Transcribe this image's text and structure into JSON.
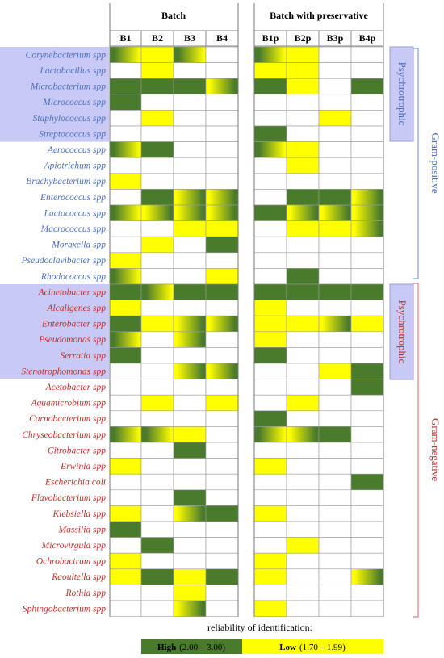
{
  "header": {
    "group1": "Batch",
    "group2": "Batch with preservative",
    "columns1": [
      "B1",
      "B2",
      "B3",
      "B4"
    ],
    "columns2": [
      "B1p",
      "B2p",
      "B3p",
      "B4p"
    ]
  },
  "side": {
    "psychrotrophic": [
      "Psychrotrophic",
      "Psychrotrophic"
    ],
    "gram_positive": "Gram-positive",
    "gram_negative": "Gram-negative"
  },
  "legend": {
    "title": "reliability of identification:",
    "high": {
      "label": "High",
      "range": "(2.00 – 3.00)",
      "color": "#4a7a2c"
    },
    "low": {
      "label": "Low",
      "range": "(1.70 – 1.99)",
      "color": "#ffff00"
    }
  },
  "rows": [
    {
      "name": "Corynebacterium spp",
      "cells": [
        "HL",
        "L",
        "HL",
        null,
        "HL",
        "L",
        null,
        null
      ]
    },
    {
      "name": "Lactobacillus spp",
      "cells": [
        null,
        "L",
        null,
        null,
        "L",
        "L",
        null,
        null
      ]
    },
    {
      "name": "Microbacterium spp",
      "cells": [
        "H",
        "H",
        "H",
        "LH",
        "H",
        "L",
        null,
        "H"
      ]
    },
    {
      "name": "Micrococcus spp",
      "cells": [
        "H",
        null,
        null,
        null,
        null,
        null,
        null,
        null
      ]
    },
    {
      "name": "Staphylococcus spp",
      "cells": [
        null,
        "L",
        null,
        null,
        null,
        null,
        "L",
        null
      ]
    },
    {
      "name": "Streptococcus spp",
      "cells": [
        null,
        null,
        null,
        null,
        "H",
        null,
        null,
        null
      ]
    },
    {
      "name": "Aerococcus spp",
      "cells": [
        "HL",
        "H",
        null,
        null,
        "HL",
        "L",
        null,
        null
      ]
    },
    {
      "name": "Apiotrichum spp",
      "cells": [
        null,
        null,
        null,
        null,
        null,
        "L",
        null,
        null
      ]
    },
    {
      "name": "Brachybacterium spp",
      "cells": [
        "L",
        null,
        null,
        null,
        null,
        null,
        null,
        null
      ]
    },
    {
      "name": "Enterococcus spp",
      "cells": [
        null,
        "H",
        "LH",
        "LH",
        null,
        "H",
        "H",
        "LH"
      ]
    },
    {
      "name": "Lactococcus spp",
      "cells": [
        "HL",
        "LH",
        "LH",
        "LH",
        "H",
        "LH",
        "LH",
        "LH"
      ]
    },
    {
      "name": "Macrococcus spp",
      "cells": [
        null,
        null,
        "L",
        "L",
        null,
        "L",
        "L",
        "LH"
      ]
    },
    {
      "name": "Moraxella spp",
      "cells": [
        null,
        "L",
        null,
        "H",
        null,
        null,
        null,
        null
      ]
    },
    {
      "name": "Pseudoclavibacter spp",
      "cells": [
        "L",
        null,
        null,
        null,
        null,
        null,
        null,
        null
      ]
    },
    {
      "name": "Rhodococcus spp",
      "cells": [
        "HL",
        null,
        null,
        "L",
        null,
        "H",
        null,
        null
      ]
    },
    {
      "name": "Acinetobacter spp",
      "cells": [
        "H",
        "HL",
        "H",
        "H",
        "H",
        "H",
        "H",
        "H"
      ]
    },
    {
      "name": "Alcaligenes spp",
      "cells": [
        "L",
        null,
        null,
        null,
        "L",
        null,
        null,
        null
      ]
    },
    {
      "name": "Enterobacter spp",
      "cells": [
        "H",
        "L",
        "LH",
        "LH",
        "L",
        "L",
        "LH",
        "L"
      ]
    },
    {
      "name": "Pseudomonas spp",
      "cells": [
        "HL",
        null,
        "LH",
        null,
        "L",
        null,
        null,
        null
      ]
    },
    {
      "name": "Serratia spp",
      "cells": [
        "H",
        null,
        null,
        null,
        "H",
        null,
        null,
        null
      ]
    },
    {
      "name": "Stenotrophomonas spp",
      "cells": [
        null,
        null,
        "LH",
        "LH",
        null,
        null,
        "L",
        "H"
      ]
    },
    {
      "name": "Acetobacter spp",
      "cells": [
        null,
        null,
        null,
        null,
        null,
        null,
        null,
        "H"
      ]
    },
    {
      "name": "Aquamicrobium spp",
      "cells": [
        null,
        "L",
        null,
        "L",
        null,
        "L",
        null,
        null
      ]
    },
    {
      "name": "Carnobacterium spp",
      "cells": [
        null,
        null,
        null,
        null,
        "H",
        null,
        null,
        null
      ]
    },
    {
      "name": "Chryseobacterium spp",
      "cells": [
        "HL",
        "HL",
        "L",
        null,
        "HL",
        "LH",
        "H",
        null
      ]
    },
    {
      "name": "Citrobacter spp",
      "cells": [
        null,
        null,
        "H",
        null,
        null,
        null,
        null,
        null
      ]
    },
    {
      "name": "Erwinia spp",
      "cells": [
        "L",
        null,
        null,
        null,
        "L",
        null,
        null,
        null
      ]
    },
    {
      "name": "Escherichia coli",
      "cells": [
        null,
        null,
        null,
        null,
        null,
        null,
        null,
        "H"
      ]
    },
    {
      "name": "Flavobacterium spp",
      "cells": [
        null,
        null,
        "H",
        null,
        null,
        null,
        null,
        null
      ]
    },
    {
      "name": "Klebsiella spp",
      "cells": [
        "L",
        null,
        "LH",
        "H",
        "L",
        null,
        null,
        null
      ]
    },
    {
      "name": "Massilia spp",
      "cells": [
        "H",
        null,
        null,
        null,
        null,
        null,
        null,
        null
      ]
    },
    {
      "name": "Microvirgula spp",
      "cells": [
        null,
        "H",
        null,
        null,
        null,
        "L",
        null,
        null
      ]
    },
    {
      "name": "Ochrobactrum spp",
      "cells": [
        "L",
        null,
        null,
        null,
        "L",
        null,
        null,
        null
      ]
    },
    {
      "name": "Raoultella spp",
      "cells": [
        "L",
        "H",
        "L",
        "H",
        "L",
        null,
        null,
        "LH"
      ]
    },
    {
      "name": "Rothia spp",
      "cells": [
        null,
        null,
        "L",
        null,
        null,
        null,
        null,
        null
      ]
    },
    {
      "name": "Sphingobacterium spp",
      "cells": [
        null,
        null,
        "LH",
        null,
        "L",
        null,
        null,
        null
      ]
    }
  ]
}
